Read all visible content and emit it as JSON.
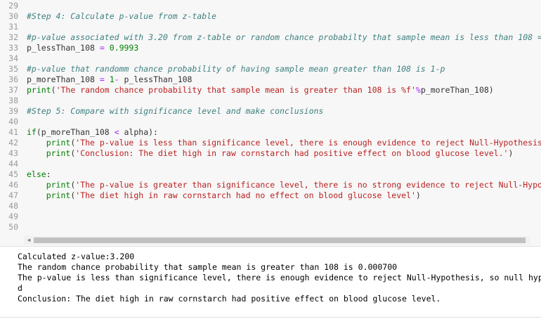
{
  "editor": {
    "lines": [
      {
        "n": "29",
        "t": ""
      },
      {
        "n": "30",
        "t": "#Step 4: Calculate p-value from z-table"
      },
      {
        "n": "31",
        "t": ""
      },
      {
        "n": "32",
        "t": "#p-value associated with 3.20 from z-table or random chance probabilty that sample mean is less than 108 ="
      },
      {
        "n": "33",
        "t": "p_lessThan_108 = 0.9993"
      },
      {
        "n": "34",
        "t": ""
      },
      {
        "n": "35",
        "t": "#p-value that randomm chance probability of having sample mean greater than 108 is 1-p"
      },
      {
        "n": "36",
        "t": "p_moreThan_108 = 1- p_lessThan_108"
      },
      {
        "n": "37",
        "t": "print('The random chance probability that sample mean is greater than 108 is %f'%p_moreThan_108)"
      },
      {
        "n": "38",
        "t": ""
      },
      {
        "n": "39",
        "t": "#Step 5: Compare with significance level and make conclusions"
      },
      {
        "n": "40",
        "t": ""
      },
      {
        "n": "41",
        "t": "if(p_moreThan_108 < alpha):"
      },
      {
        "n": "42",
        "t": "    print('The p-value is less than significance level, there is enough evidence to reject Null-Hypothesis"
      },
      {
        "n": "43",
        "t": "    print('Conclusion: The diet high in raw cornstarch had positive effect on blood glucose level.')"
      },
      {
        "n": "44",
        "t": ""
      },
      {
        "n": "45",
        "t": "else:"
      },
      {
        "n": "46",
        "t": "    print('The p-value is greater than significance level, there is no strong evidence to reject Null-Hypo"
      },
      {
        "n": "47",
        "t": "    print('The diet high in raw cornstarch had no effect on blood glucose level')"
      },
      {
        "n": "48",
        "t": ""
      },
      {
        "n": "49",
        "t": ""
      },
      {
        "n": "50",
        "t": ""
      }
    ]
  },
  "output": {
    "lines": [
      "Calculated z-value:3.200",
      "The random chance probability that sample mean is greater than 108 is 0.000700",
      "The p-value is less than significance level, there is enough evidence to reject Null-Hypothesis, so null hyp",
      "d",
      "Conclusion: The diet high in raw cornstarch had positive effect on blood glucose level."
    ]
  }
}
